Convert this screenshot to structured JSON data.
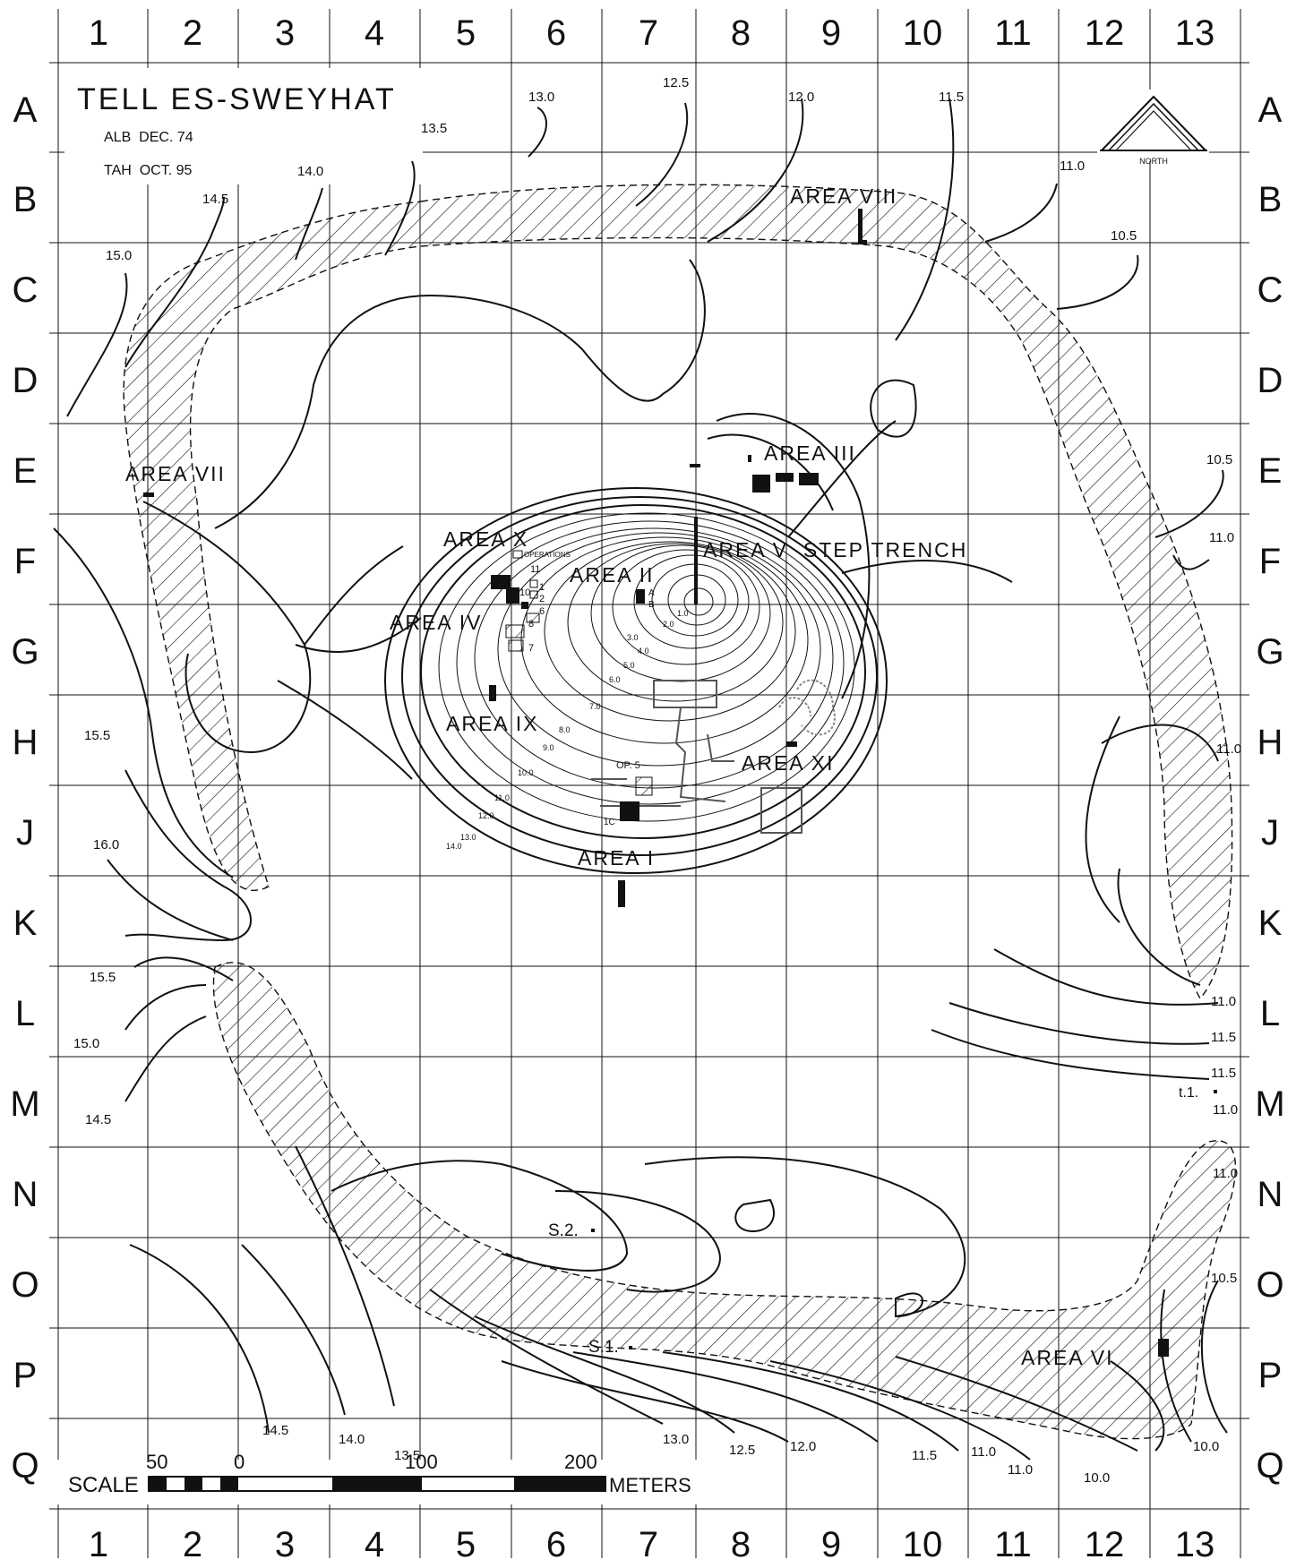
{
  "map": {
    "title": "TELL ES-SWEYHAT",
    "credits": [
      "ALB  DEC. 74",
      "TAH  OCT. 95"
    ],
    "north_label": "NORTH",
    "grid_columns": [
      "1",
      "2",
      "3",
      "4",
      "5",
      "6",
      "7",
      "8",
      "9",
      "10",
      "11",
      "12",
      "13"
    ],
    "grid_rows": [
      "A",
      "B",
      "C",
      "D",
      "E",
      "F",
      "G",
      "H",
      "J",
      "K",
      "L",
      "M",
      "N",
      "O",
      "P",
      "Q"
    ],
    "areas": {
      "area_i": "AREA I",
      "area_ii": "AREA II",
      "area_iii": "AREA III",
      "area_iv": "AREA IV",
      "area_v": "AREA V  STEP TRENCH",
      "area_vi": "AREA VI",
      "area_vii": "AREA VII",
      "area_viii": "AREA VIII",
      "area_ix": "AREA IX",
      "area_x": "AREA X",
      "area_xi": "AREA XI"
    },
    "points": {
      "s1": "S.1.",
      "s2": "S.2.",
      "t1": "t.1.",
      "op5": "OP. 5",
      "operations": "OPERATIONS"
    },
    "op_numbers": [
      "11",
      "10",
      "1",
      "2",
      "6",
      "8",
      "7"
    ],
    "sub_labels": {
      "a": "A",
      "b": "B",
      "c": "1C"
    },
    "elevations": {
      "top": [
        "13.0",
        "12.5",
        "12.0",
        "11.5",
        "13.5",
        "14.0",
        "14.5",
        "15.0",
        "11.0",
        "10.5"
      ],
      "left": [
        "15.5",
        "16.0",
        "15.5",
        "15.0",
        "14.5"
      ],
      "right": [
        "10.5",
        "11.0",
        "11.0",
        "11.0",
        "11.5",
        "11.5",
        "11.0",
        "11.0",
        "10.5",
        "10.0"
      ],
      "bottom": [
        "14.5",
        "14.0",
        "13.5",
        "13.0",
        "12.5",
        "12.0",
        "11.5",
        "11.0",
        "11.0",
        "10.0"
      ],
      "mound": [
        "1.0",
        "2.0",
        "3.0",
        "4.0",
        "5.0",
        "6.0",
        "7.0",
        "8.0",
        "9.0",
        "10.0",
        "11.0",
        "12.0",
        "13.0",
        "14.0"
      ]
    },
    "scale": {
      "label": "SCALE",
      "ticks": [
        "50",
        "0",
        "100",
        "200"
      ],
      "unit": "METERS"
    }
  }
}
